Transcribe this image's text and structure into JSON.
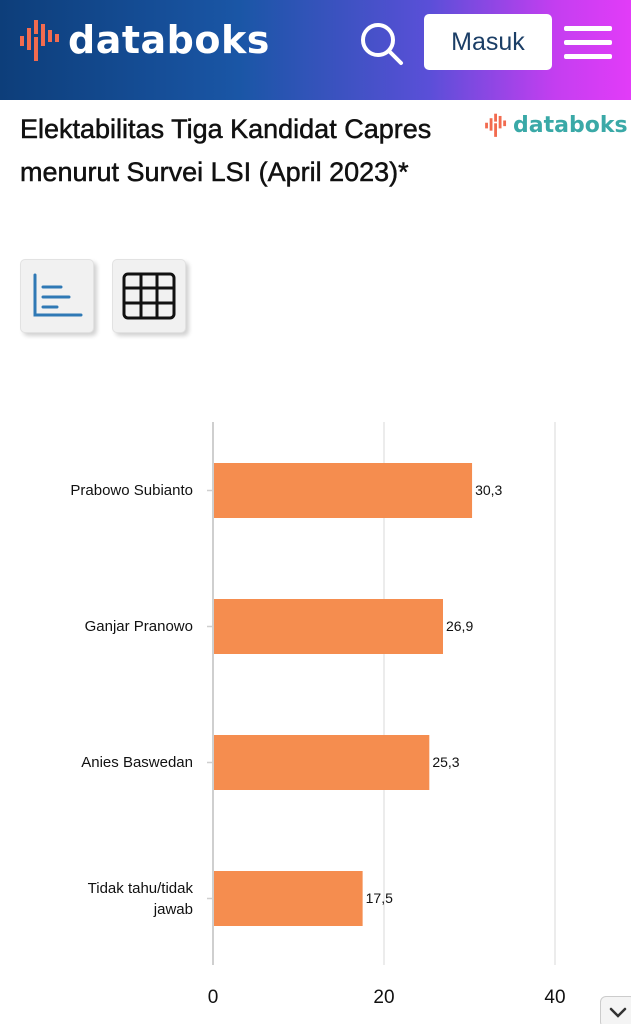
{
  "header": {
    "brand": "databoks",
    "login_label": "Masuk"
  },
  "page": {
    "title": "Elektabilitas Tiga Kandidat Capres menurut Survei LSI (April 2023)*",
    "brand_small": "databoks"
  },
  "colors": {
    "bar": "#f58d4f",
    "brand_teal": "#3aa9a7",
    "header_gradient_start": "#0d3e7a",
    "header_gradient_end": "#e23cf8"
  },
  "icons": {
    "search": "search-icon",
    "menu": "hamburger-menu-icon",
    "chart_view": "bar-chart-icon",
    "table_view": "table-grid-icon",
    "scroll": "chevron-down-icon"
  },
  "chart_data": {
    "type": "bar",
    "orientation": "horizontal",
    "categories": [
      "Prabowo Subianto",
      "Ganjar Pranowo",
      "Anies Baswedan",
      "Tidak tahu/tidak jawab"
    ],
    "values": [
      30.3,
      26.9,
      25.3,
      17.5
    ],
    "value_labels": [
      "30,3",
      "26,9",
      "25,3",
      "17,5"
    ],
    "xlim": [
      0,
      40
    ],
    "x_ticks": [
      0,
      20,
      40
    ],
    "grid": true
  }
}
